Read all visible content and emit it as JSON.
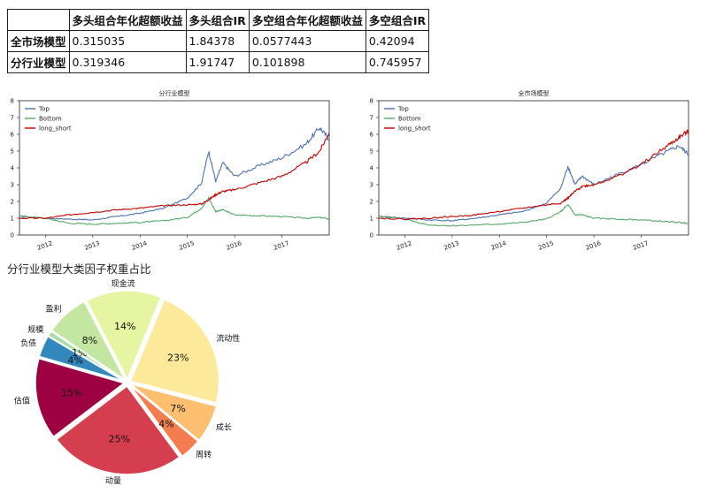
{
  "table": {
    "headers": [
      "",
      "多头组合年化超额收益",
      "多头组合IR",
      "多空组合年化超额收益",
      "多空组合IR"
    ],
    "rows": [
      {
        "label": "全市场模型",
        "values": [
          "0.315035",
          "1.84378",
          "0.0577443",
          "0.42094"
        ]
      },
      {
        "label": "分行业模型",
        "values": [
          "0.319346",
          "1.91747",
          "0.101898",
          "0.745957"
        ]
      }
    ]
  },
  "chart_data": [
    {
      "type": "line",
      "title": "分行业模型",
      "x_ticks": [
        "2012",
        "2013",
        "2014",
        "2015",
        "2016",
        "2017"
      ],
      "ylim": [
        0,
        8
      ],
      "y_ticks": [
        0,
        1,
        2,
        3,
        4,
        5,
        6,
        7,
        8
      ],
      "legend_position": "top-left",
      "x": [
        2011.45,
        2012.0,
        2012.5,
        2013.0,
        2013.5,
        2014.0,
        2014.5,
        2015.0,
        2015.3,
        2015.45,
        2015.6,
        2015.75,
        2016.0,
        2016.5,
        2017.0,
        2017.5,
        2017.8,
        2018.0
      ],
      "series": [
        {
          "name": "Top",
          "color": "#4c72b0",
          "values": [
            1.1,
            1.0,
            0.95,
            0.9,
            1.1,
            1.3,
            1.6,
            2.2,
            3.1,
            5.0,
            3.2,
            4.3,
            3.5,
            4.1,
            4.6,
            5.4,
            6.4,
            5.7
          ]
        },
        {
          "name": "Bottom",
          "color": "#55a868",
          "values": [
            1.15,
            1.0,
            0.7,
            0.65,
            0.7,
            0.75,
            0.85,
            1.05,
            1.6,
            2.2,
            1.4,
            1.5,
            1.2,
            1.15,
            1.1,
            1.0,
            1.05,
            0.95
          ]
        },
        {
          "name": "long_short",
          "color": "#c40000",
          "values": [
            1.0,
            1.0,
            1.2,
            1.35,
            1.5,
            1.6,
            1.75,
            1.8,
            1.85,
            2.1,
            2.4,
            2.6,
            2.7,
            3.1,
            3.5,
            4.3,
            5.0,
            6.1
          ]
        }
      ]
    },
    {
      "type": "line",
      "title": "全市场模型",
      "x_ticks": [
        "2012",
        "2013",
        "2014",
        "2015",
        "2016",
        "2017"
      ],
      "ylim": [
        0,
        8
      ],
      "y_ticks": [
        0,
        1,
        2,
        3,
        4,
        5,
        6,
        7,
        8
      ],
      "legend_position": "top-left",
      "x": [
        2011.45,
        2012.0,
        2012.5,
        2013.0,
        2013.5,
        2014.0,
        2014.5,
        2015.0,
        2015.3,
        2015.45,
        2015.6,
        2015.75,
        2016.0,
        2016.5,
        2017.0,
        2017.5,
        2017.8,
        2018.0
      ],
      "series": [
        {
          "name": "Top",
          "color": "#4c72b0",
          "values": [
            1.1,
            1.0,
            0.9,
            0.85,
            1.0,
            1.2,
            1.4,
            1.9,
            2.8,
            4.1,
            3.0,
            3.5,
            3.0,
            3.6,
            4.2,
            4.9,
            5.3,
            4.8
          ]
        },
        {
          "name": "Bottom",
          "color": "#55a868",
          "values": [
            1.15,
            0.95,
            0.6,
            0.55,
            0.6,
            0.65,
            0.75,
            0.95,
            1.4,
            1.8,
            1.2,
            1.2,
            1.0,
            0.95,
            0.9,
            0.8,
            0.75,
            0.7
          ]
        },
        {
          "name": "long_short",
          "color": "#c40000",
          "values": [
            1.0,
            0.95,
            1.0,
            1.1,
            1.2,
            1.4,
            1.6,
            1.8,
            1.9,
            2.2,
            2.6,
            2.9,
            3.0,
            3.5,
            4.2,
            5.2,
            5.8,
            6.2
          ]
        }
      ]
    },
    {
      "type": "pie",
      "title": "分行业模型大类因子权重占比",
      "slices": [
        {
          "label": "现金流",
          "value": 14,
          "pct": "14%",
          "color": "#e6f5a1"
        },
        {
          "label": "流动性",
          "value": 23,
          "pct": "23%",
          "color": "#fde99a"
        },
        {
          "label": "成长",
          "value": 7,
          "pct": "7%",
          "color": "#fdbe6f"
        },
        {
          "label": "周转",
          "value": 4,
          "pct": "4%",
          "color": "#f37d4e"
        },
        {
          "label": "动量",
          "value": 25,
          "pct": "25%",
          "color": "#d53e4f"
        },
        {
          "label": "估值",
          "value": 15,
          "pct": "15%",
          "color": "#9e0142"
        },
        {
          "label": "负债",
          "value": 4,
          "pct": "4%",
          "color": "#3288bd"
        },
        {
          "label": "规模",
          "value": 1,
          "pct": "1%",
          "color": "#a8dda4"
        },
        {
          "label": "盈利",
          "value": 8,
          "pct": "8%",
          "color": "#c3e6a0"
        }
      ]
    }
  ]
}
